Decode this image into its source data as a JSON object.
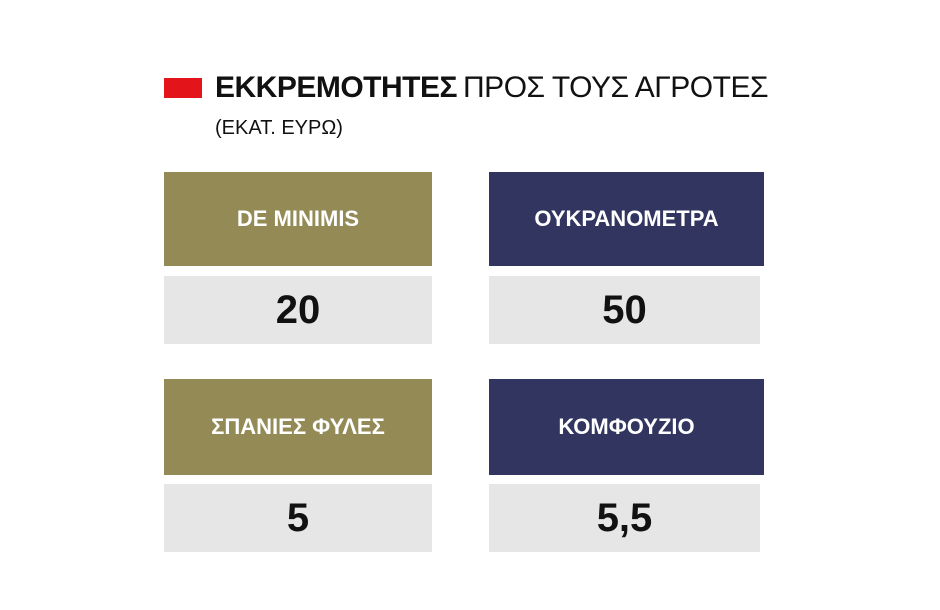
{
  "title": {
    "bold": "ΕΚΚΡΕΜΟΤΗΤΕΣ",
    "regular": "ΠΡΟΣ ΤΟΥΣ ΑΓΡΟΤΕΣ",
    "subtitle": "(ΕΚΑΤ. ΕΥΡΩ)",
    "marker_color": "#e3151b"
  },
  "chart_data": {
    "type": "table",
    "title": "ΕΚΚΡΕΜΟΤΗΤΕΣ ΠΡΟΣ ΤΟΥΣ ΑΓΡΟΤΕΣ",
    "subtitle": "(ΕΚΑΤ. ΕΥΡΩ)",
    "categories": [
      "DE MINIMIS",
      "ΟΥΚΡΑΝΟΜΕΤΡΑ",
      "ΣΠΑΝΙΕΣ ΦΥΛΕΣ",
      "ΚΟΜΦΟΥΖΙΟ"
    ],
    "values": [
      20,
      50,
      5,
      5.5
    ],
    "value_labels": [
      "20",
      "50",
      "5",
      "5,5"
    ],
    "header_colors": [
      "#938a55",
      "#313560",
      "#938a55",
      "#313560"
    ],
    "value_background": "#e6e6e7"
  }
}
